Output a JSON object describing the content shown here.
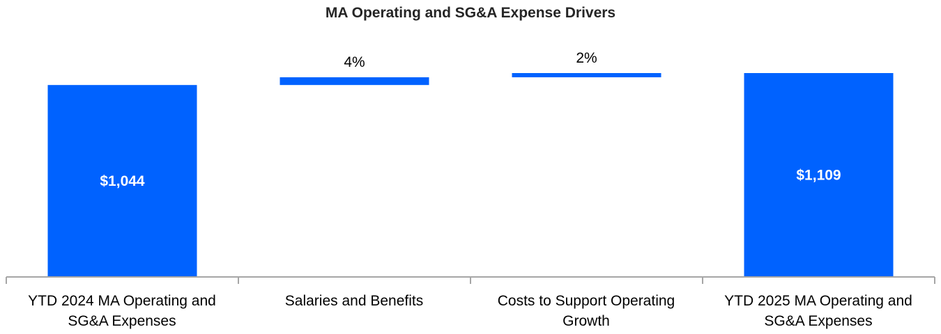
{
  "chart_data": {
    "type": "bar",
    "subtype": "waterfall",
    "title": "MA Operating and SG&A Expense Drivers",
    "categories": [
      {
        "line1": "YTD 2024 MA Operating and",
        "line2": "SG&A Expenses"
      },
      {
        "line1": "Salaries and Benefits",
        "line2": ""
      },
      {
        "line1": "Costs to Support Operating",
        "line2": "Growth"
      },
      {
        "line1": "YTD 2025 MA Operating and",
        "line2": "SG&A Expenses"
      }
    ],
    "bars": [
      {
        "kind": "total",
        "start": 0,
        "end": 1044,
        "label": "$1,044"
      },
      {
        "kind": "delta",
        "start": 1044,
        "end": 1086,
        "label": "4%"
      },
      {
        "kind": "delta",
        "start": 1086,
        "end": 1109,
        "label": "2%"
      },
      {
        "kind": "total",
        "start": 0,
        "end": 1109,
        "label": "$1,109"
      }
    ],
    "ylim": [
      0,
      1109
    ],
    "xlabel": "",
    "ylabel": "",
    "grid": false,
    "colors": {
      "bar": "#0062ff",
      "axis": "#a6a6a6",
      "total_label": "#ffffff",
      "delta_label": "#000000"
    }
  }
}
